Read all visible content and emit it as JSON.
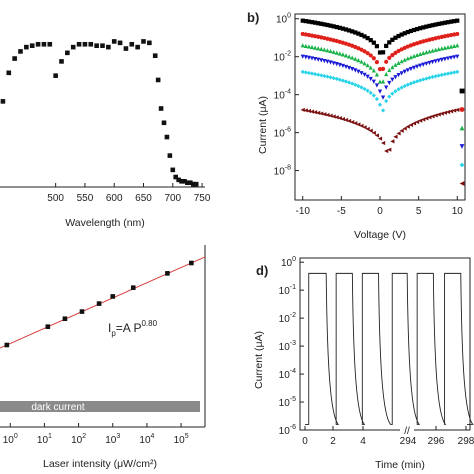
{
  "chart_data": [
    {
      "id": "a",
      "panel_label": "",
      "type": "scatter",
      "xlabel": "Wavelength (nm)",
      "ylabel": "",
      "xlim": [
        405,
        755
      ],
      "ylim": [
        0,
        1.1
      ],
      "xticks": [
        "500",
        "550",
        "600",
        "650",
        "700",
        "750"
      ],
      "grid": false,
      "series": [
        {
          "x": [
            410,
            420,
            430,
            440,
            450,
            460,
            470,
            480,
            490,
            500,
            510,
            520,
            530,
            540,
            550,
            560,
            570,
            580,
            590,
            600,
            610,
            620,
            630,
            640,
            650,
            660,
            670,
            675,
            680,
            685,
            690,
            695,
            700,
            705,
            710,
            715,
            720,
            725,
            730,
            735,
            740
          ],
          "y": [
            0.6,
            0.8,
            0.9,
            0.95,
            0.98,
            0.99,
            1.0,
            1.0,
            1.0,
            0.78,
            0.88,
            0.94,
            0.98,
            1.0,
            1.0,
            1.0,
            0.99,
            0.99,
            0.98,
            1.02,
            1.01,
            0.97,
            1.0,
            0.98,
            1.02,
            1.01,
            0.92,
            0.75,
            0.55,
            0.45,
            0.35,
            0.22,
            0.12,
            0.07,
            0.05,
            0.04,
            0.04,
            0.03,
            0.03,
            0.02,
            0.02
          ]
        }
      ]
    },
    {
      "id": "b",
      "panel_label": "b)",
      "type": "scatter",
      "xlabel": "Voltage (V)",
      "ylabel": "Current (μA)",
      "yscale": "log",
      "xlim": [
        -11,
        11
      ],
      "ylim_exp": [
        -9,
        0
      ],
      "xticks": [
        "-10",
        "-5",
        "0",
        "5",
        "10"
      ],
      "yticks": [
        {
          "base": "10",
          "exp": "0"
        },
        {
          "base": "10",
          "exp": "-2"
        },
        {
          "base": "10",
          "exp": "-4"
        },
        {
          "base": "10",
          "exp": "-6"
        },
        {
          "base": "10",
          "exp": "-8"
        }
      ],
      "grid": false,
      "legend_position": "right",
      "series": [
        {
          "color": "#000000",
          "marker": "square",
          "max_exp": -0.1,
          "min_exp": -3.0,
          "min_v": 0.2
        },
        {
          "color": "#e0201a",
          "marker": "circle",
          "max_exp": -0.8,
          "min_exp": -4.0,
          "min_v": 0.2
        },
        {
          "color": "#19b34a",
          "marker": "triangle-up",
          "max_exp": -1.4,
          "min_exp": -4.7,
          "min_v": 0.2
        },
        {
          "color": "#1c1cd6",
          "marker": "triangle-down",
          "max_exp": -2.0,
          "min_exp": -5.4,
          "min_v": 0.3
        },
        {
          "color": "#29d3e8",
          "marker": "diamond",
          "max_exp": -2.8,
          "min_exp": -6.0,
          "min_v": 0.3
        },
        {
          "color": "#7a1010",
          "marker": "triangle-left",
          "max_exp": -4.8,
          "min_exp": -8.5,
          "min_v": 1.0
        }
      ]
    },
    {
      "id": "c",
      "panel_label": "",
      "type": "scatter",
      "xlabel": "Laser intensity (μW/cm²)",
      "ylabel": "",
      "xscale": "log",
      "xlim_exp": [
        -0.3,
        5.7
      ],
      "xticks": [
        {
          "base": "10",
          "exp": "0"
        },
        {
          "base": "10",
          "exp": "1"
        },
        {
          "base": "10",
          "exp": "2"
        },
        {
          "base": "10",
          "exp": "3"
        },
        {
          "base": "10",
          "exp": "4"
        },
        {
          "base": "10",
          "exp": "5"
        }
      ],
      "equation": {
        "main": "I",
        "sub": "p",
        "rest": "=A P",
        "sup": "0.80"
      },
      "band_label": "dark current",
      "fit_color": "#d94040",
      "series": [
        {
          "x_exp": [
            -0.1,
            1.1,
            1.6,
            2.1,
            2.6,
            3.0,
            3.6,
            4.6,
            5.3
          ],
          "y": [
            0.1,
            0.33,
            0.43,
            0.52,
            0.62,
            0.71,
            0.82,
            1.0,
            1.13
          ]
        }
      ]
    },
    {
      "id": "d",
      "panel_label": "d)",
      "type": "line",
      "xlabel": "Time (min)",
      "ylabel": "Current (μA)",
      "yscale": "log",
      "ylim_exp": [
        -6,
        0
      ],
      "yticks": [
        {
          "base": "10",
          "exp": "0"
        },
        {
          "base": "10",
          "exp": "-1"
        },
        {
          "base": "10",
          "exp": "-2"
        },
        {
          "base": "10",
          "exp": "-3"
        },
        {
          "base": "10",
          "exp": "-4"
        },
        {
          "base": "10",
          "exp": "-5"
        },
        {
          "base": "10",
          "exp": "-6"
        }
      ],
      "xticks": [
        "0",
        "2",
        "4",
        "294",
        "296",
        "298"
      ],
      "axis_break": "//",
      "on_level_exp": -0.4,
      "off_level_exp": -5.8,
      "pulses": [
        [
          0.3,
          1.7
        ],
        [
          2.5,
          3.8
        ],
        [
          4.6,
          5.9
        ],
        [
          7.0,
          8.2
        ],
        [
          9.0,
          10.3
        ],
        [
          11.2,
          12.5
        ]
      ]
    }
  ]
}
